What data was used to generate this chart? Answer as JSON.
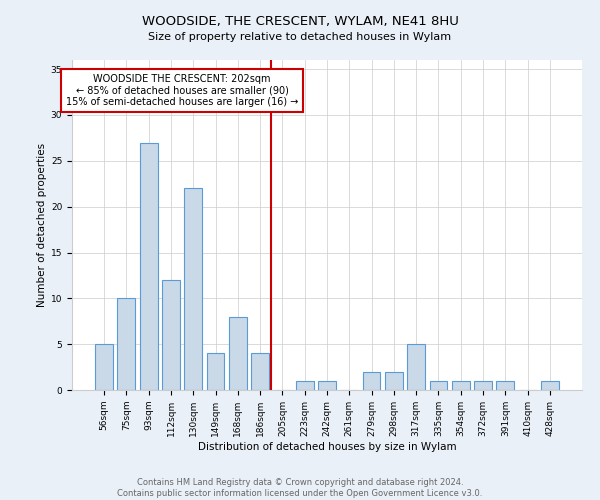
{
  "title": "WOODSIDE, THE CRESCENT, WYLAM, NE41 8HU",
  "subtitle": "Size of property relative to detached houses in Wylam",
  "xlabel": "Distribution of detached houses by size in Wylam",
  "ylabel": "Number of detached properties",
  "footer": "Contains HM Land Registry data © Crown copyright and database right 2024.\nContains public sector information licensed under the Open Government Licence v3.0.",
  "categories": [
    "56sqm",
    "75sqm",
    "93sqm",
    "112sqm",
    "130sqm",
    "149sqm",
    "168sqm",
    "186sqm",
    "205sqm",
    "223sqm",
    "242sqm",
    "261sqm",
    "279sqm",
    "298sqm",
    "317sqm",
    "335sqm",
    "354sqm",
    "372sqm",
    "391sqm",
    "410sqm",
    "428sqm"
  ],
  "values": [
    5,
    10,
    27,
    12,
    22,
    4,
    8,
    4,
    0,
    1,
    1,
    0,
    2,
    2,
    5,
    1,
    1,
    1,
    1,
    0,
    1
  ],
  "bar_color": "#c9d9e8",
  "bar_edge_color": "#5b9bd5",
  "annotation_text": "WOODSIDE THE CRESCENT: 202sqm\n← 85% of detached houses are smaller (90)\n15% of semi-detached houses are larger (16) →",
  "annotation_box_color": "#ffffff",
  "annotation_box_edge": "#cc0000",
  "vline_color": "#cc0000",
  "ylim": [
    0,
    36
  ],
  "yticks": [
    0,
    5,
    10,
    15,
    20,
    25,
    30,
    35
  ],
  "bg_color": "#eaf0f8",
  "plot_bg_color": "#ffffff",
  "grid_color": "#cccccc",
  "title_fontsize": 9.5,
  "subtitle_fontsize": 8,
  "axis_label_fontsize": 7.5,
  "tick_fontsize": 6.5,
  "footer_fontsize": 6,
  "annotation_fontsize": 7
}
